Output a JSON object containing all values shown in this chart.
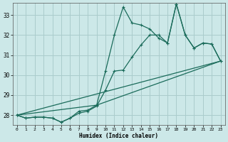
{
  "xlabel": "Humidex (Indice chaleur)",
  "bg_color": "#cce8e8",
  "line_color": "#1a6b5a",
  "grid_color": "#aacccc",
  "xlim": [
    -0.5,
    23.5
  ],
  "ylim": [
    27.5,
    33.6
  ],
  "xticks": [
    0,
    1,
    2,
    3,
    4,
    5,
    6,
    7,
    8,
    9,
    10,
    11,
    12,
    13,
    14,
    15,
    16,
    17,
    18,
    19,
    20,
    21,
    22,
    23
  ],
  "yticks": [
    28,
    29,
    30,
    31,
    32,
    33
  ],
  "jagged_x": [
    0,
    1,
    2,
    3,
    4,
    5,
    6,
    7,
    8,
    9,
    10,
    11,
    12,
    13,
    14,
    15,
    16,
    17,
    18,
    19,
    20,
    21,
    22,
    23
  ],
  "jagged_y": [
    28.0,
    27.85,
    27.9,
    27.9,
    27.85,
    27.65,
    27.85,
    28.2,
    28.25,
    28.5,
    30.2,
    32.0,
    33.4,
    32.6,
    32.5,
    32.3,
    31.85,
    31.6,
    33.55,
    32.0,
    31.35,
    31.6,
    31.55,
    30.7
  ],
  "smooth_x": [
    0,
    1,
    2,
    3,
    4,
    5,
    6,
    7,
    8,
    9,
    10,
    11,
    12,
    13,
    14,
    15,
    16,
    17,
    18,
    19,
    20,
    21,
    22,
    23
  ],
  "smooth_y": [
    28.0,
    27.85,
    27.9,
    27.9,
    27.85,
    27.65,
    27.85,
    28.1,
    28.2,
    28.45,
    29.25,
    30.2,
    30.25,
    30.9,
    31.5,
    32.0,
    32.0,
    31.6,
    33.55,
    32.0,
    31.35,
    31.6,
    31.55,
    30.7
  ],
  "trend1_x": [
    0,
    23
  ],
  "trend1_y": [
    28.0,
    30.7
  ],
  "trend2_x": [
    0,
    9,
    23
  ],
  "trend2_y": [
    28.0,
    28.5,
    30.7
  ]
}
